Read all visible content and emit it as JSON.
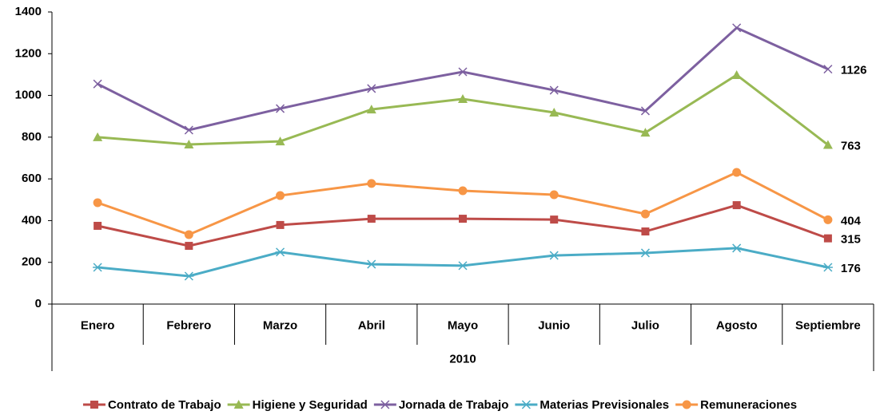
{
  "chart_data": {
    "type": "line",
    "categories": [
      "Enero",
      "Febrero",
      "Marzo",
      "Abril",
      "Mayo",
      "Junio",
      "Julio",
      "Agosto",
      "Septiembre"
    ],
    "x_group": "2010",
    "series": [
      {
        "name": "Contrato de Trabajo",
        "color": "#be4b48",
        "marker": "square",
        "values": [
          375,
          279,
          379,
          409,
          409,
          405,
          348,
          474,
          315
        ]
      },
      {
        "name": "Higiene y Seguridad",
        "color": "#98b954",
        "marker": "triangle",
        "values": [
          800,
          765,
          780,
          933,
          983,
          918,
          822,
          1098,
          763
        ]
      },
      {
        "name": "Jornada de Trabajo",
        "color": "#7d60a0",
        "marker": "x",
        "values": [
          1055,
          834,
          937,
          1033,
          1113,
          1025,
          926,
          1324,
          1126
        ]
      },
      {
        "name": "Materias Previsionales",
        "color": "#4bacc6",
        "marker": "asterisk",
        "values": [
          176,
          134,
          249,
          191,
          184,
          233,
          245,
          268,
          176
        ]
      },
      {
        "name": "Remuneraciones",
        "color": "#f79646",
        "marker": "circle",
        "values": [
          486,
          333,
          520,
          578,
          543,
          524,
          432,
          631,
          404
        ]
      }
    ],
    "data_labels": "last",
    "ylim": [
      0,
      1400
    ],
    "yticks": [
      0,
      200,
      400,
      600,
      800,
      1000,
      1200,
      1400
    ],
    "grid": false,
    "legend": "bottom"
  }
}
